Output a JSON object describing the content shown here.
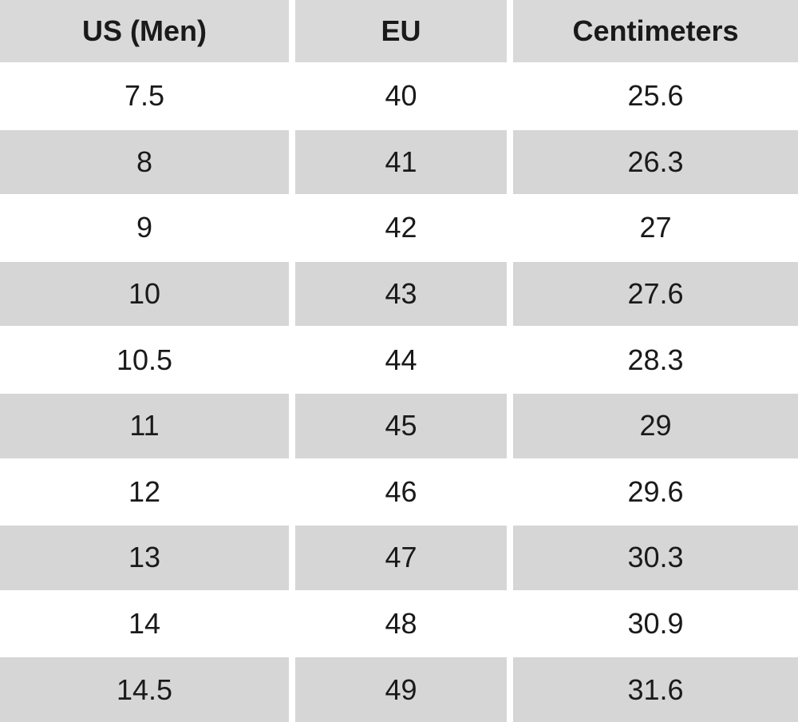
{
  "table": {
    "header": [
      "US (Men)",
      "EU",
      "Centimeters"
    ],
    "rows": [
      [
        7.5,
        40,
        25.6
      ],
      [
        8,
        41,
        26.3
      ],
      [
        9,
        42,
        27
      ],
      [
        10,
        43,
        27.6
      ],
      [
        10.5,
        44,
        28.3
      ],
      [
        11,
        45,
        29
      ],
      [
        12,
        46,
        29.6
      ],
      [
        13,
        47,
        30.3
      ],
      [
        14,
        48,
        30.9
      ],
      [
        14.5,
        49,
        31.6
      ]
    ]
  }
}
